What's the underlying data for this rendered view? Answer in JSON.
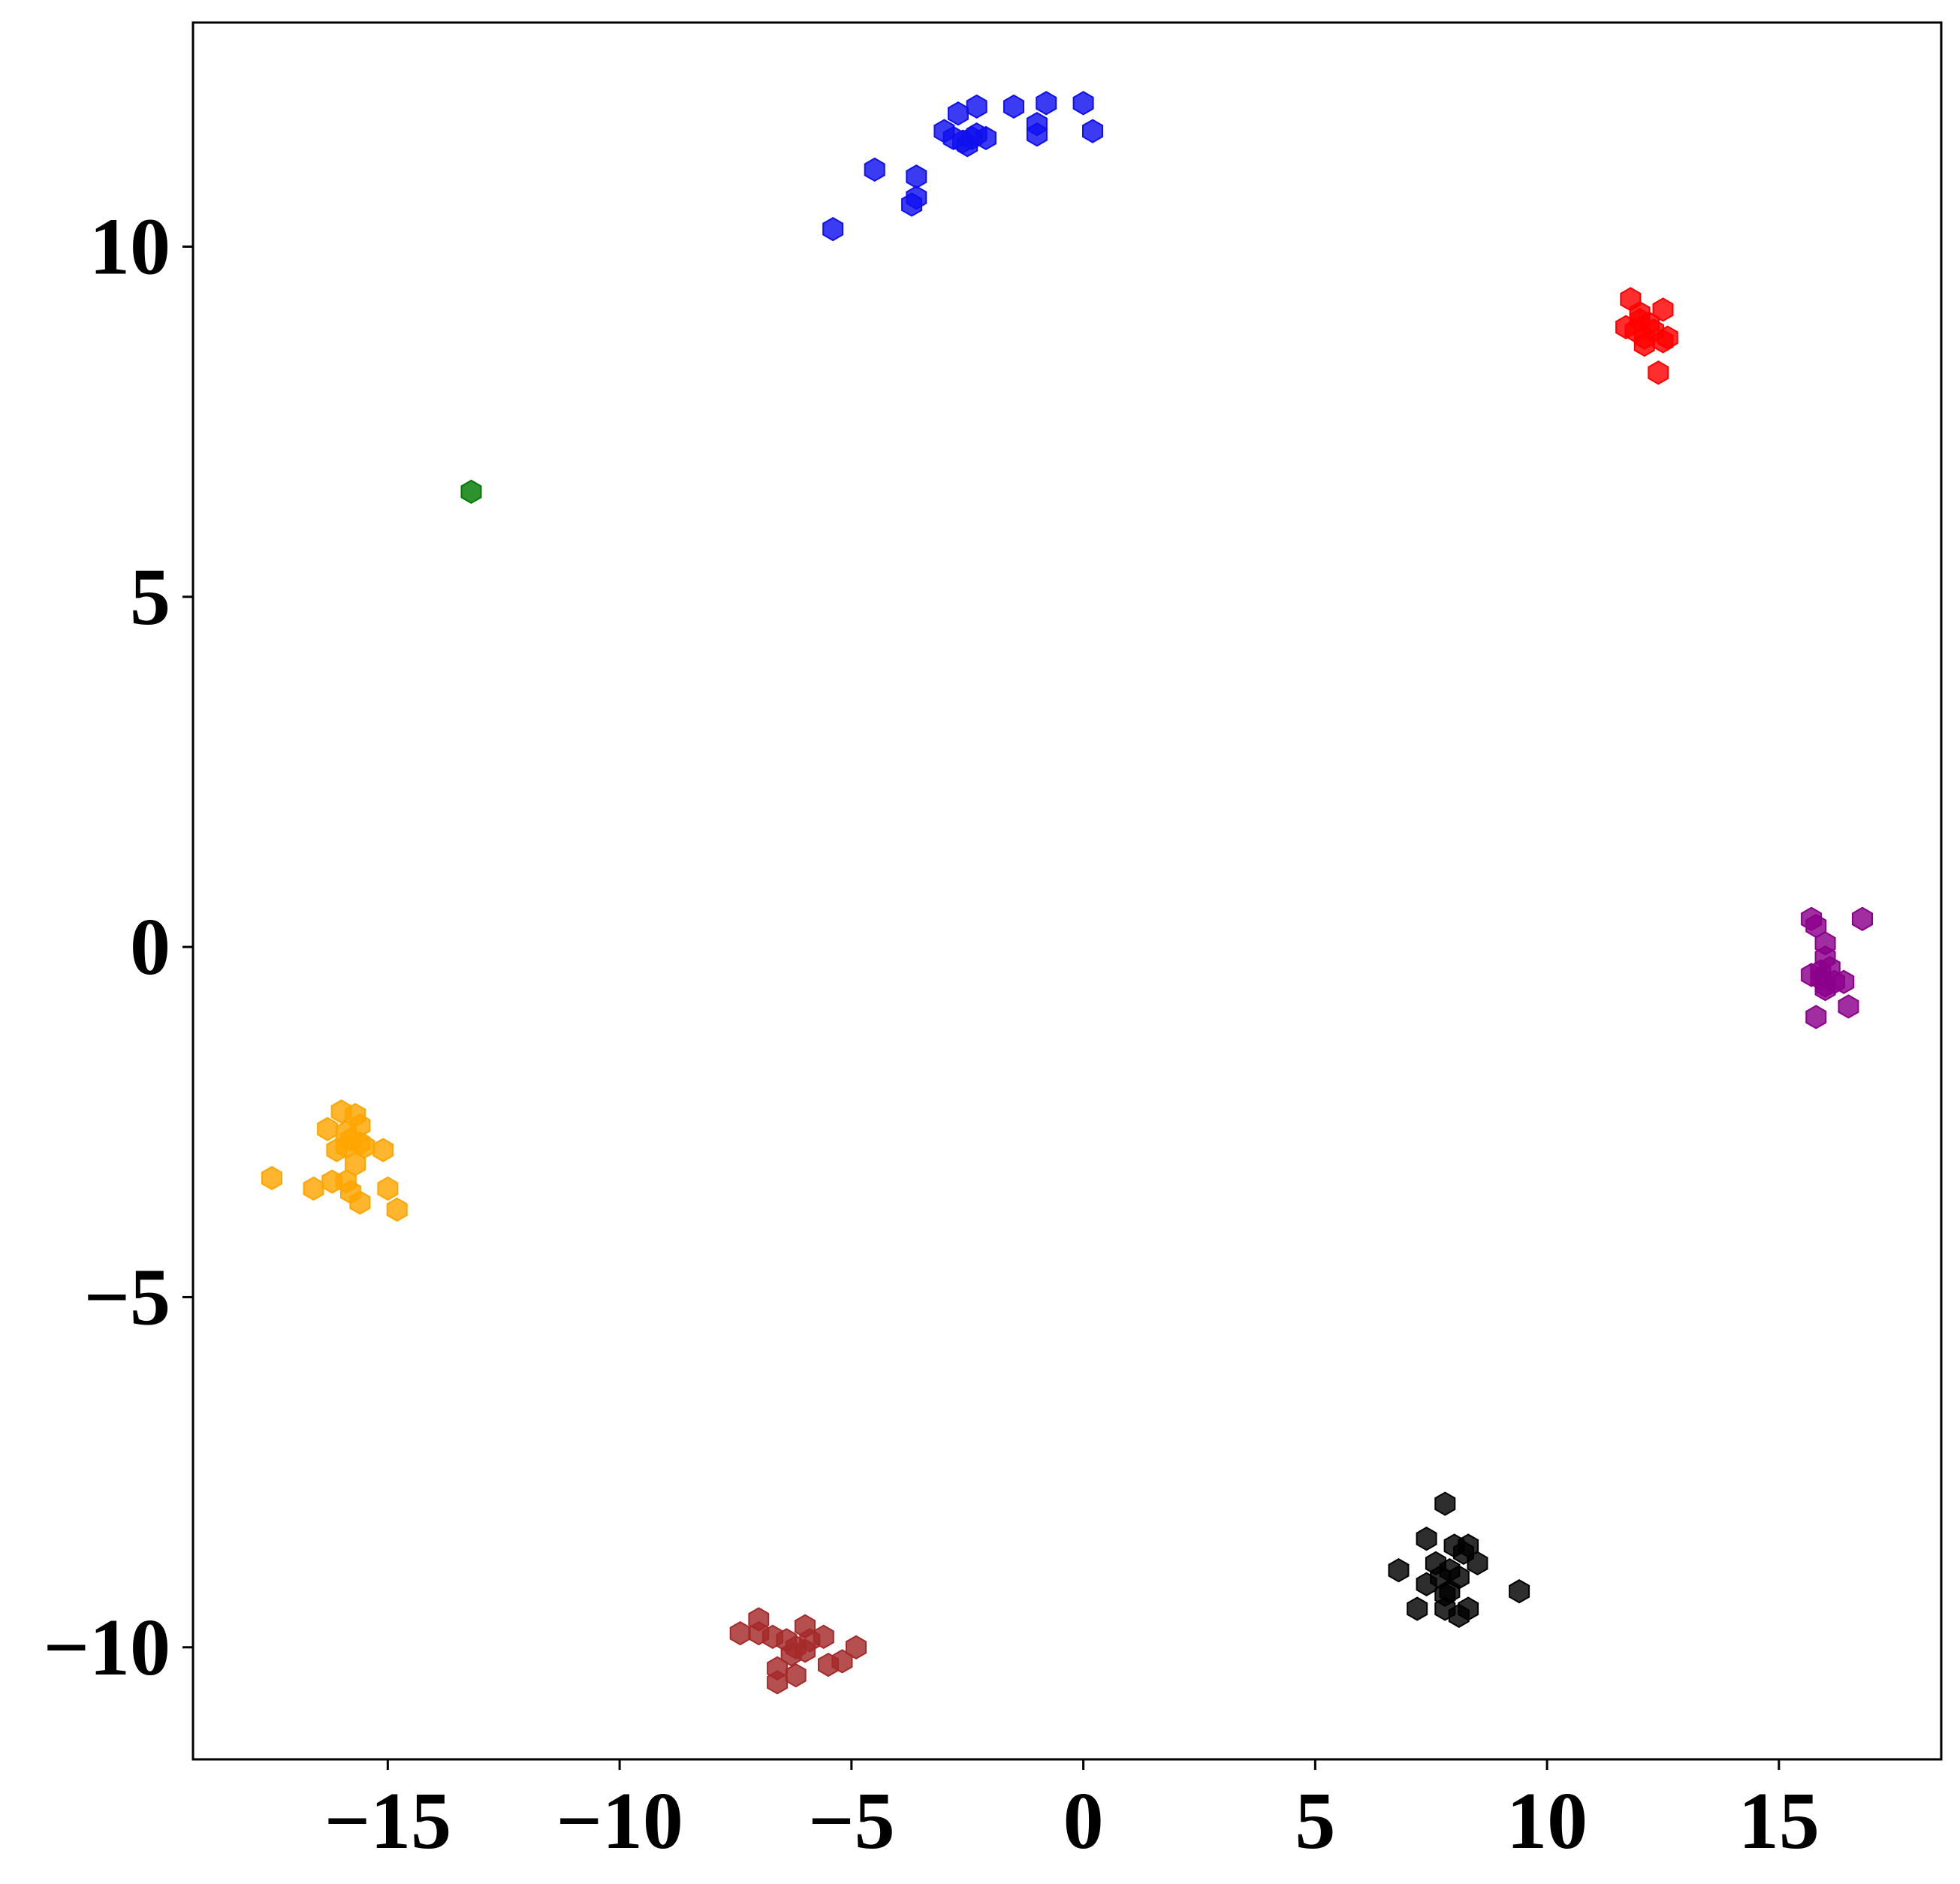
{
  "chart_data": {
    "type": "scatter",
    "title": "",
    "xlabel": "",
    "ylabel": "",
    "xlim": [
      -19.2,
      18.5
    ],
    "ylim": [
      -11.6,
      13.2
    ],
    "grid": false,
    "legend": "none",
    "marker": "hexagon",
    "x_ticks": [
      -15,
      -10,
      -5,
      0,
      5,
      10,
      15
    ],
    "y_ticks": [
      -10,
      -5,
      0,
      5,
      10
    ],
    "x_tick_labels": [
      "−15",
      "−10",
      "−5",
      "0",
      "5",
      "10",
      "15"
    ],
    "y_tick_labels": [
      "−10",
      "−5",
      "0",
      "5",
      "10"
    ],
    "series": [
      {
        "color": "#1010ee",
        "points": [
          [
            -5.4,
            10.25
          ],
          [
            -4.5,
            11.1
          ],
          [
            -3.7,
            10.6
          ],
          [
            -3.6,
            10.7
          ],
          [
            -3.6,
            11.0
          ],
          [
            -3.0,
            11.65
          ],
          [
            -2.8,
            11.55
          ],
          [
            -2.6,
            11.5
          ],
          [
            -2.7,
            11.9
          ],
          [
            -2.5,
            11.45
          ],
          [
            -2.4,
            11.55
          ],
          [
            -2.3,
            11.6
          ],
          [
            -2.3,
            12.0
          ],
          [
            -2.1,
            11.55
          ],
          [
            -1.5,
            12.0
          ],
          [
            -1.0,
            11.6
          ],
          [
            -1.0,
            11.75
          ],
          [
            -0.8,
            12.05
          ],
          [
            0.0,
            12.05
          ],
          [
            0.2,
            11.65
          ]
        ]
      },
      {
        "color": "#ff0000",
        "points": [
          [
            11.8,
            9.25
          ],
          [
            11.7,
            8.85
          ],
          [
            11.9,
            8.8
          ],
          [
            12.0,
            9.05
          ],
          [
            12.1,
            8.7
          ],
          [
            12.0,
            8.95
          ],
          [
            12.2,
            8.9
          ],
          [
            12.3,
            8.8
          ],
          [
            12.1,
            8.6
          ],
          [
            12.5,
            8.65
          ],
          [
            12.6,
            8.7
          ],
          [
            12.5,
            9.1
          ],
          [
            12.4,
            8.2
          ]
        ]
      },
      {
        "color": "#007a00",
        "points": [
          [
            -13.2,
            6.5
          ]
        ]
      },
      {
        "color": "#8b008b",
        "points": [
          [
            15.7,
            0.4
          ],
          [
            15.8,
            0.3
          ],
          [
            16.8,
            0.4
          ],
          [
            16.0,
            0.05
          ],
          [
            16.0,
            -0.15
          ],
          [
            16.1,
            -0.3
          ],
          [
            15.9,
            -0.35
          ],
          [
            15.7,
            -0.4
          ],
          [
            15.9,
            -0.45
          ],
          [
            16.0,
            -0.55
          ],
          [
            16.2,
            -0.5
          ],
          [
            16.0,
            -0.6
          ],
          [
            16.4,
            -0.5
          ],
          [
            16.5,
            -0.85
          ],
          [
            15.8,
            -1.0
          ]
        ]
      },
      {
        "color": "#ffa500",
        "points": [
          [
            -16.0,
            -2.35
          ],
          [
            -15.7,
            -2.4
          ],
          [
            -16.3,
            -2.6
          ],
          [
            -15.9,
            -2.65
          ],
          [
            -15.6,
            -2.55
          ],
          [
            -15.8,
            -2.75
          ],
          [
            -15.6,
            -2.8
          ],
          [
            -15.9,
            -2.85
          ],
          [
            -16.1,
            -2.9
          ],
          [
            -15.5,
            -2.85
          ],
          [
            -15.1,
            -2.9
          ],
          [
            -15.7,
            -3.1
          ],
          [
            -16.2,
            -3.35
          ],
          [
            -15.9,
            -3.35
          ],
          [
            -15.8,
            -3.5
          ],
          [
            -17.5,
            -3.3
          ],
          [
            -16.6,
            -3.45
          ],
          [
            -15.0,
            -3.45
          ],
          [
            -15.6,
            -3.65
          ],
          [
            -14.8,
            -3.75
          ]
        ]
      },
      {
        "color": "#a52a2a",
        "points": [
          [
            -7.0,
            -9.6
          ],
          [
            -7.4,
            -9.8
          ],
          [
            -7.0,
            -9.8
          ],
          [
            -6.7,
            -9.85
          ],
          [
            -6.4,
            -9.9
          ],
          [
            -6.0,
            -9.7
          ],
          [
            -5.9,
            -9.9
          ],
          [
            -5.6,
            -9.85
          ],
          [
            -6.2,
            -10.0
          ],
          [
            -6.0,
            -10.05
          ],
          [
            -6.3,
            -10.1
          ],
          [
            -4.9,
            -10.0
          ],
          [
            -5.2,
            -10.2
          ],
          [
            -5.5,
            -10.25
          ],
          [
            -6.6,
            -10.3
          ],
          [
            -6.2,
            -10.4
          ],
          [
            -6.6,
            -10.5
          ]
        ]
      },
      {
        "color": "#000000",
        "points": [
          [
            7.8,
            -7.95
          ],
          [
            7.4,
            -8.45
          ],
          [
            8.0,
            -8.55
          ],
          [
            8.3,
            -8.55
          ],
          [
            8.2,
            -8.65
          ],
          [
            7.6,
            -8.8
          ],
          [
            8.5,
            -8.8
          ],
          [
            6.8,
            -8.9
          ],
          [
            7.9,
            -8.9
          ],
          [
            7.7,
            -9.0
          ],
          [
            8.1,
            -9.0
          ],
          [
            7.4,
            -9.1
          ],
          [
            7.9,
            -9.2
          ],
          [
            7.8,
            -9.25
          ],
          [
            9.4,
            -9.2
          ],
          [
            7.2,
            -9.45
          ],
          [
            7.8,
            -9.45
          ],
          [
            8.3,
            -9.45
          ],
          [
            8.1,
            -9.55
          ]
        ]
      }
    ]
  }
}
